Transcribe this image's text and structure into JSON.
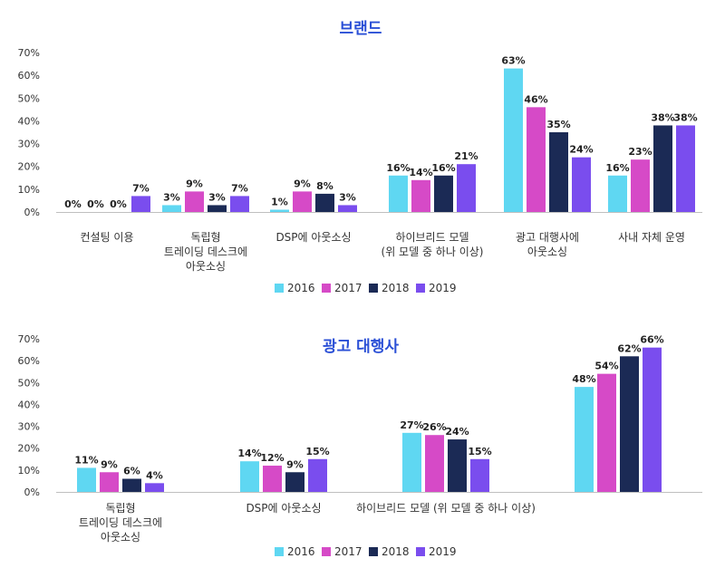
{
  "colors": {
    "2016": "#5fd7f2",
    "2017": "#d64ac7",
    "2018": "#1b2a55",
    "2019": "#7a4dee"
  },
  "chart_data": [
    {
      "type": "bar",
      "title": "브랜드",
      "ylim": [
        0,
        70
      ],
      "yticks": [
        "0%",
        "10%",
        "20%",
        "30%",
        "40%",
        "50%",
        "60%",
        "70%"
      ],
      "categories": [
        [
          "컨설팅 이용"
        ],
        [
          "독립형",
          "트레이딩 데스크에",
          "아웃소싱"
        ],
        [
          "DSP에 아웃소싱"
        ],
        [
          "하이브리드 모델",
          "(위 모델 중 하나 이상)"
        ],
        [
          "광고 대행사에",
          "아웃소싱"
        ],
        [
          "사내 자체 운영"
        ]
      ],
      "series": [
        {
          "name": "2016",
          "values": [
            0,
            3,
            1,
            16,
            63,
            16
          ]
        },
        {
          "name": "2017",
          "values": [
            0,
            9,
            9,
            14,
            46,
            23
          ]
        },
        {
          "name": "2018",
          "values": [
            0,
            3,
            8,
            16,
            35,
            38
          ]
        },
        {
          "name": "2019",
          "values": [
            7,
            7,
            3,
            21,
            24,
            38
          ]
        }
      ],
      "legend_position": "bottom-center"
    },
    {
      "type": "bar",
      "title": "광고 대행사",
      "ylim": [
        0,
        70
      ],
      "yticks": [
        "0%",
        "10%",
        "20%",
        "30%",
        "40%",
        "50%",
        "60%",
        "70%"
      ],
      "categories": [
        [
          "독립형",
          "트레이딩 데스크에",
          "아웃소싱"
        ],
        [
          "DSP에 아웃소싱"
        ],
        [
          "하이브리드 모델 (위 모델 중 하나 이상)"
        ],
        [
          ""
        ]
      ],
      "series": [
        {
          "name": "2016",
          "values": [
            11,
            14,
            27,
            48
          ]
        },
        {
          "name": "2017",
          "values": [
            9,
            12,
            26,
            54
          ]
        },
        {
          "name": "2018",
          "values": [
            6,
            9,
            24,
            62
          ]
        },
        {
          "name": "2019",
          "values": [
            4,
            15,
            15,
            66
          ]
        }
      ],
      "legend_position": "bottom-center"
    }
  ]
}
